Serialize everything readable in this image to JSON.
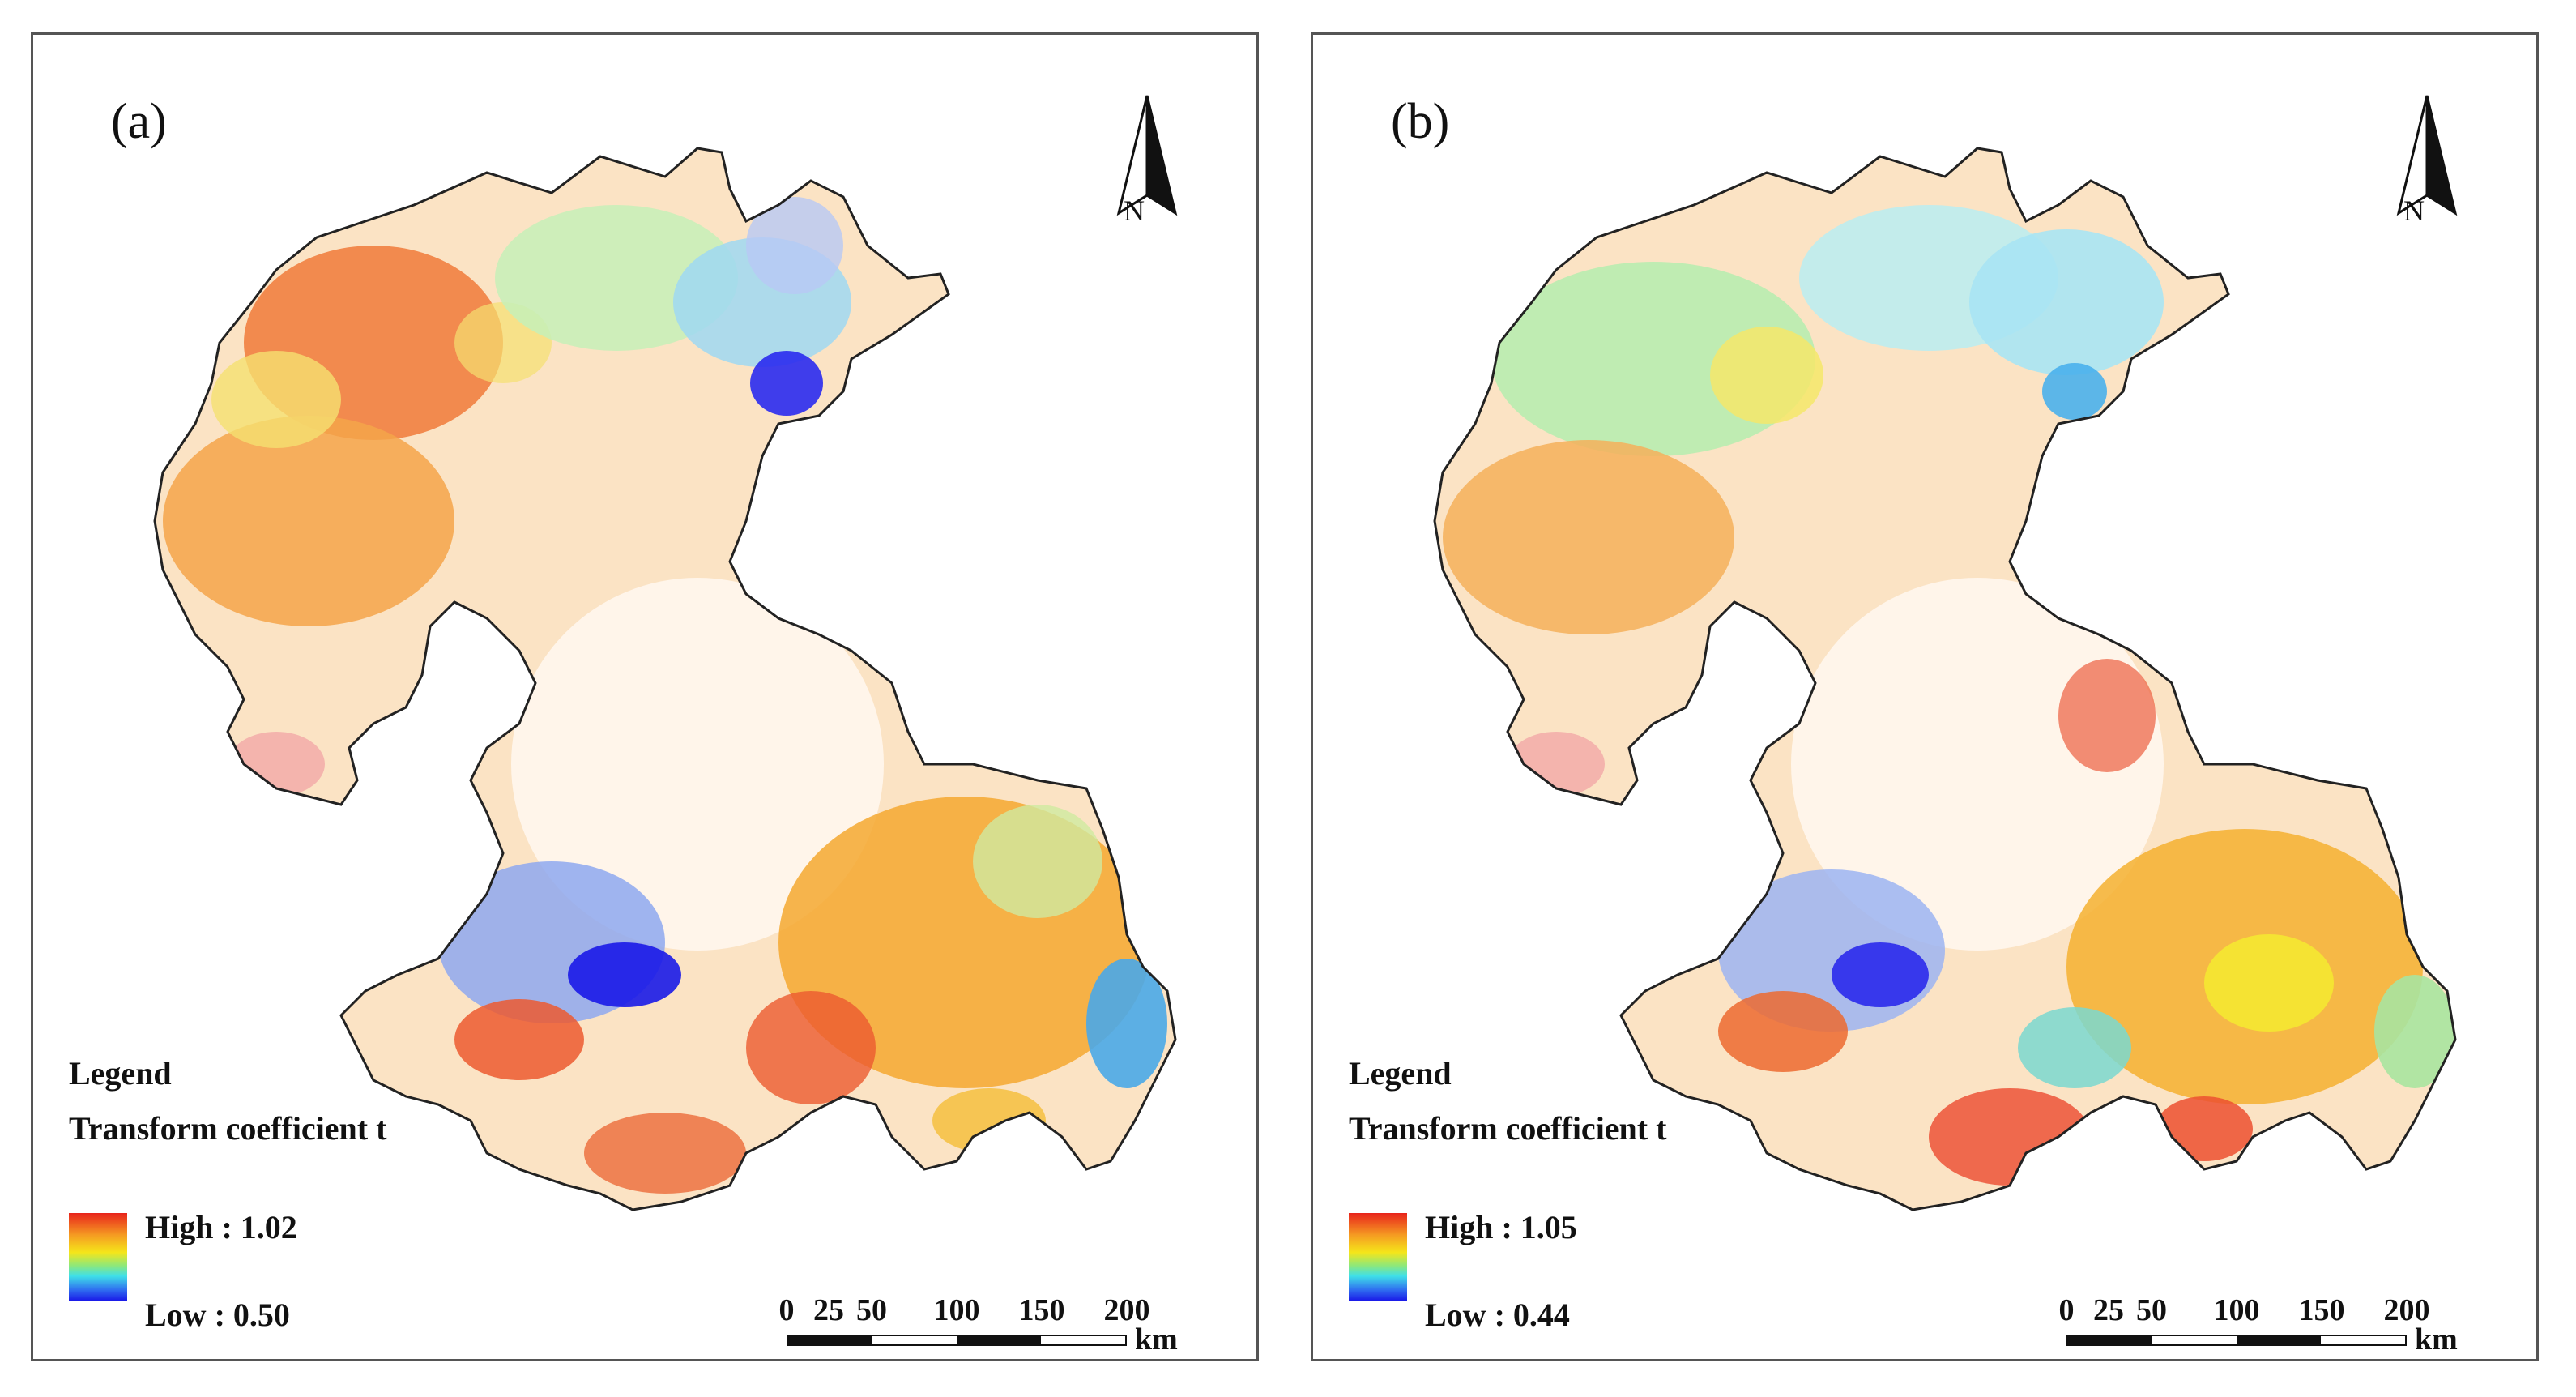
{
  "panels": [
    {
      "label": "(a)",
      "north": "N",
      "legend": {
        "title": "Legend",
        "subtitle": "Transform coefficient t",
        "high": "High : 1.02",
        "low": "Low : 0.50"
      },
      "scale": {
        "ticks": [
          "0",
          "25",
          "50",
          "100",
          "150",
          "200"
        ],
        "unit": "km"
      }
    },
    {
      "label": "(b)",
      "north": "N",
      "legend": {
        "title": "Legend",
        "subtitle": "Transform coefficient t",
        "high": "High : 1.05",
        "low": "Low : 0.44"
      },
      "scale": {
        "ticks": [
          "0",
          "25",
          "50",
          "100",
          "150",
          "200"
        ],
        "unit": "km"
      }
    }
  ],
  "colors": {
    "high": "#e8231c",
    "orange": "#f59b22",
    "yellow": "#f5e61a",
    "green": "#8ee87a",
    "cyan": "#3fe0e8",
    "low": "#1a1ae8",
    "boundary": "#222222"
  }
}
